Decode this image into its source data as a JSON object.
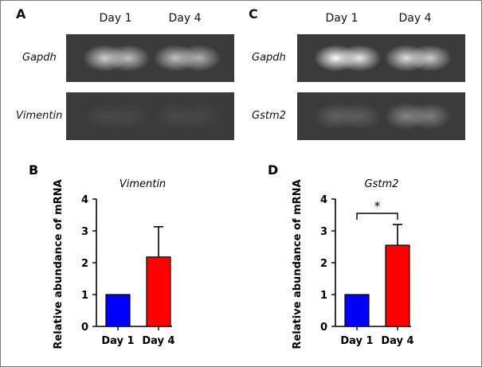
{
  "figure": {
    "panels": {
      "A": {
        "letter": "A",
        "columns": [
          "Day 1",
          "Day 4"
        ],
        "rows": [
          {
            "gene": "Gapdh",
            "band_intensity": [
              0.85,
              0.8
            ]
          },
          {
            "gene": "Vimentin",
            "band_intensity": [
              0.15,
              0.15
            ]
          }
        ]
      },
      "C": {
        "letter": "C",
        "columns": [
          "Day 1",
          "Day 4"
        ],
        "rows": [
          {
            "gene": "Gapdh",
            "band_intensity": [
              1.0,
              0.9
            ]
          },
          {
            "gene": "Gstm2",
            "band_intensity": [
              0.35,
              0.55
            ]
          }
        ]
      }
    }
  },
  "chart_data": [
    {
      "panel": "B",
      "type": "bar",
      "title": "Vimentin",
      "ylabel": "Relative abundance of mRNA",
      "categories": [
        "Day 1",
        "Day 4"
      ],
      "values": [
        1.0,
        2.18
      ],
      "errors": [
        0,
        0.95
      ],
      "colors": [
        "#0000ff",
        "#ff0000"
      ],
      "ylim": [
        0,
        4
      ],
      "yticks": [
        "0",
        "1",
        "2",
        "3",
        "4"
      ],
      "significance": null
    },
    {
      "panel": "D",
      "type": "bar",
      "title": "Gstm2",
      "ylabel": "Relative abundance of mRNA",
      "categories": [
        "Day 1",
        "Day 4"
      ],
      "values": [
        1.0,
        2.55
      ],
      "errors": [
        0,
        0.65
      ],
      "colors": [
        "#0000ff",
        "#ff0000"
      ],
      "ylim": [
        0,
        4
      ],
      "yticks": [
        "0",
        "1",
        "2",
        "3",
        "4"
      ],
      "significance": "*"
    }
  ]
}
